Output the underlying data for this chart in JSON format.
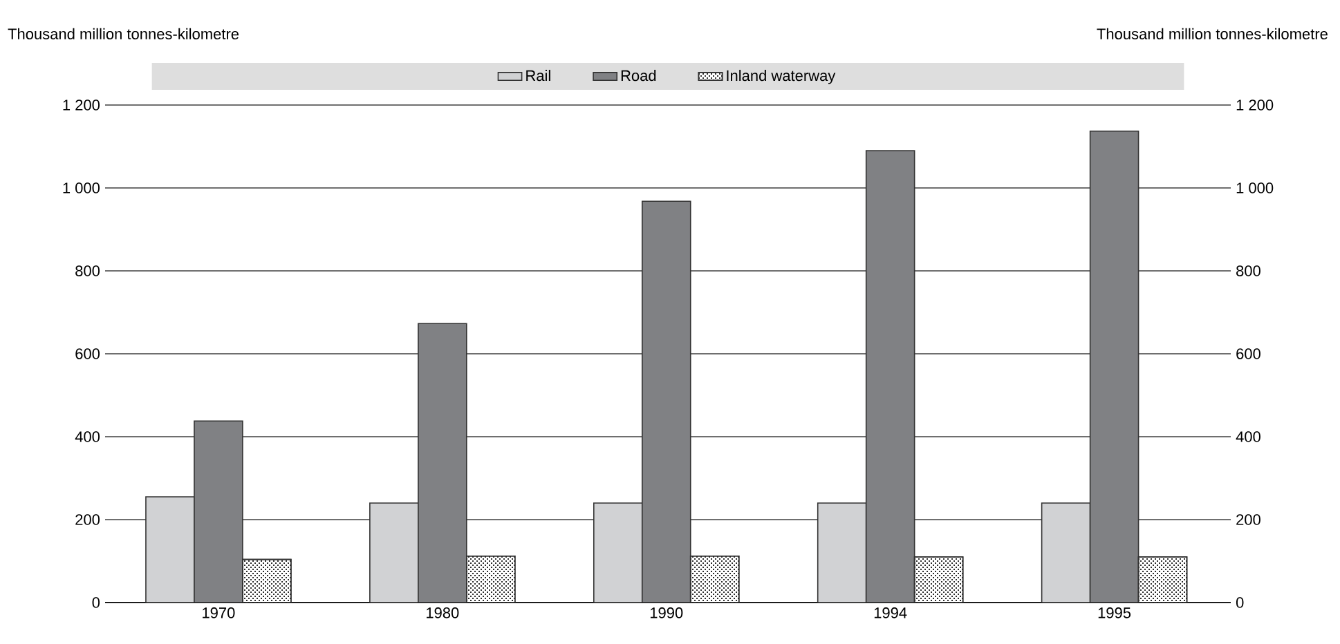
{
  "chart_data": {
    "type": "bar",
    "ylabel": "Thousand million tonnes-kilometre",
    "y2label": "Thousand million tonnes-kilometre",
    "categories": [
      "1970",
      "1980",
      "1990",
      "1994",
      "1995"
    ],
    "series": [
      {
        "name": "Rail",
        "color": "#d1d2d4",
        "values": [
          255,
          240,
          240,
          240,
          240
        ]
      },
      {
        "name": "Road",
        "color": "#808184",
        "values": [
          438,
          673,
          968,
          1090,
          1137
        ]
      },
      {
        "name": "Inland waterway",
        "color": "#ffffff",
        "values": [
          104,
          112,
          112,
          110,
          110
        ]
      }
    ],
    "ylim": [
      0,
      1200
    ],
    "yticks": [
      0,
      200,
      400,
      600,
      800,
      {
        "value": 1000,
        "label": "1 000"
      },
      {
        "value": 1200,
        "label": "1 200"
      }
    ],
    "y2lim": [
      0,
      1200
    ],
    "y2ticks": [
      0,
      200,
      400,
      600,
      800,
      {
        "value": 1000,
        "label": "1 000"
      },
      {
        "value": 1200,
        "label": "1 200"
      }
    ],
    "grid": "y",
    "legend": "top"
  }
}
